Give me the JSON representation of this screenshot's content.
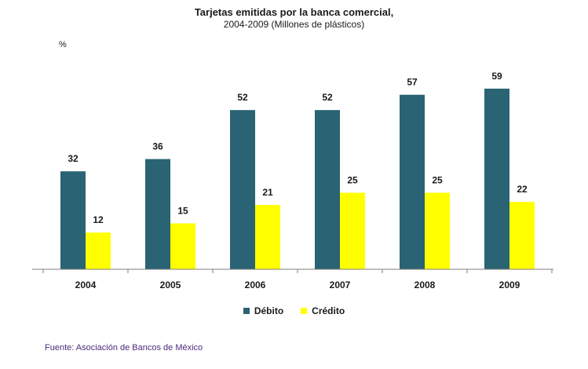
{
  "chart_data": {
    "type": "bar",
    "title": "Tarjetas emitidas por la banca comercial,",
    "subtitle": "2004-2009 (Millones de plásticos)",
    "ylabel": "%",
    "categories": [
      "2004",
      "2005",
      "2006",
      "2007",
      "2008",
      "2009"
    ],
    "series": [
      {
        "name": "Débito",
        "values": [
          32,
          36,
          52,
          52,
          57,
          59
        ],
        "color": "#2a6373"
      },
      {
        "name": "Crédito",
        "values": [
          12,
          15,
          21,
          25,
          25,
          22
        ],
        "color": "#ffff00"
      }
    ],
    "ylim": [
      0,
      70
    ],
    "grid": false,
    "legend_position": "bottom"
  },
  "source": "Fuente: Asociación de Bancos de México"
}
